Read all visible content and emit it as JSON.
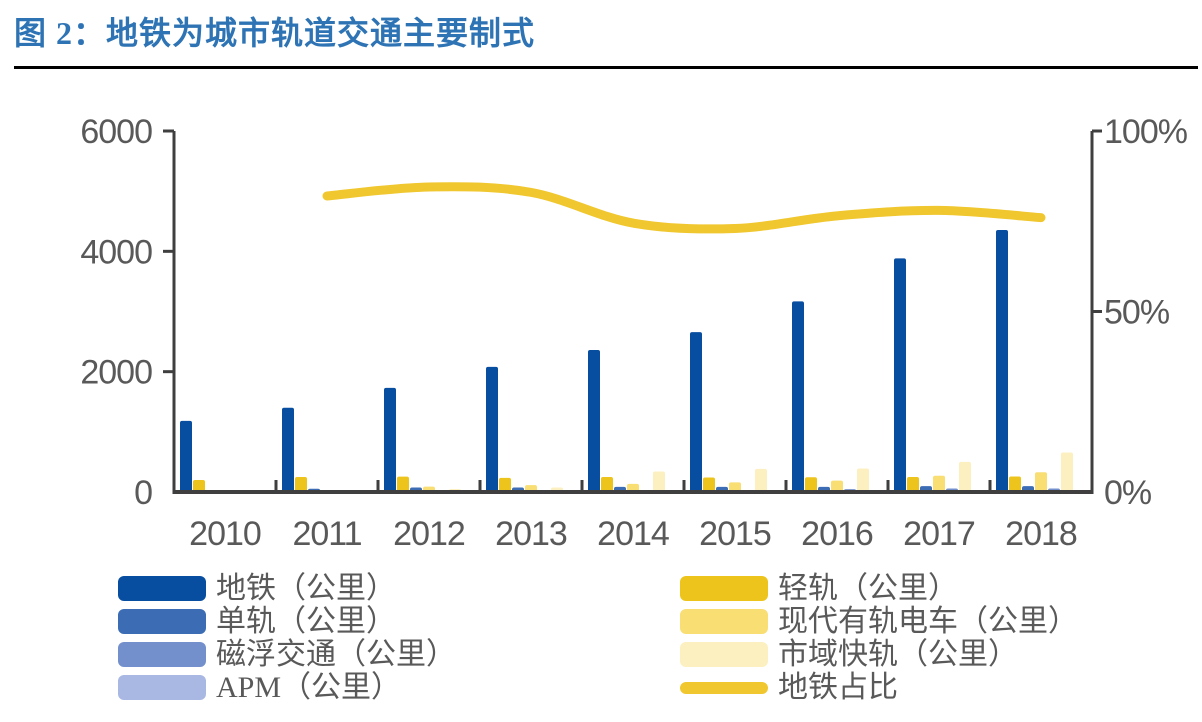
{
  "header": {
    "title": "图 2：地铁为城市轨道交通主要制式",
    "title_color": "#2E74B5"
  },
  "chart_data": {
    "type": "combo-bar-line",
    "categories": [
      "2010",
      "2011",
      "2012",
      "2013",
      "2014",
      "2015",
      "2016",
      "2017",
      "2018"
    ],
    "bar_series": [
      {
        "name": "地铁（公里）",
        "color": "#084EA0",
        "values": [
          1182,
          1400,
          1730,
          2080,
          2361,
          2658,
          3169,
          3884,
          4354
        ]
      },
      {
        "name": "轻轨（公里）",
        "color": "#EDC41C",
        "values": [
          200,
          250,
          255,
          235,
          250,
          240,
          245,
          250,
          257
        ]
      },
      {
        "name": "单轨（公里）",
        "color": "#3B6CB4",
        "values": [
          19,
          55,
          75,
          75,
          85,
          86,
          86,
          98,
          98
        ]
      },
      {
        "name": "现代有轨电车（公里）",
        "color": "#F8DE73",
        "values": [
          0,
          30,
          90,
          115,
          135,
          160,
          190,
          270,
          329
        ]
      },
      {
        "name": "磁浮交通（公里）",
        "color": "#7390CC",
        "values": [
          30,
          30,
          30,
          30,
          30,
          30,
          48,
          58,
          58
        ]
      },
      {
        "name": "市域快轨（公里）",
        "color": "#FCF0C0",
        "values": [
          0,
          0,
          50,
          75,
          340,
          385,
          390,
          500,
          657
        ]
      },
      {
        "name": "APM（公里）",
        "color": "#A9B7E3",
        "values": [
          4,
          4,
          4,
          4,
          4,
          8,
          8,
          10,
          10
        ]
      }
    ],
    "line_series": {
      "name": "地铁占比",
      "color": "#F0C72E",
      "unit": "%",
      "values": [
        null,
        82,
        84.5,
        83,
        74.5,
        73,
        76.5,
        78,
        76
      ]
    },
    "left_axis": {
      "min": 0,
      "max": 6000,
      "tick_labels": [
        "0",
        "2000",
        "4000",
        "6000"
      ]
    },
    "right_axis": {
      "min": 0,
      "max": 100,
      "tick_labels": [
        "0%",
        "50%",
        "100%"
      ]
    },
    "legend": {
      "left_column": [
        "地铁（公里）",
        "单轨（公里）",
        "磁浮交通（公里）",
        "APM（公里）"
      ],
      "right_column": [
        "轻轨（公里）",
        "现代有轨电车（公里）",
        "市域快轨（公里）",
        "地铁占比"
      ]
    },
    "grid": "off",
    "legend_position": "bottom"
  },
  "style_colors": {
    "axis_line": "#3F3F3F",
    "tick_text": "#595959"
  }
}
